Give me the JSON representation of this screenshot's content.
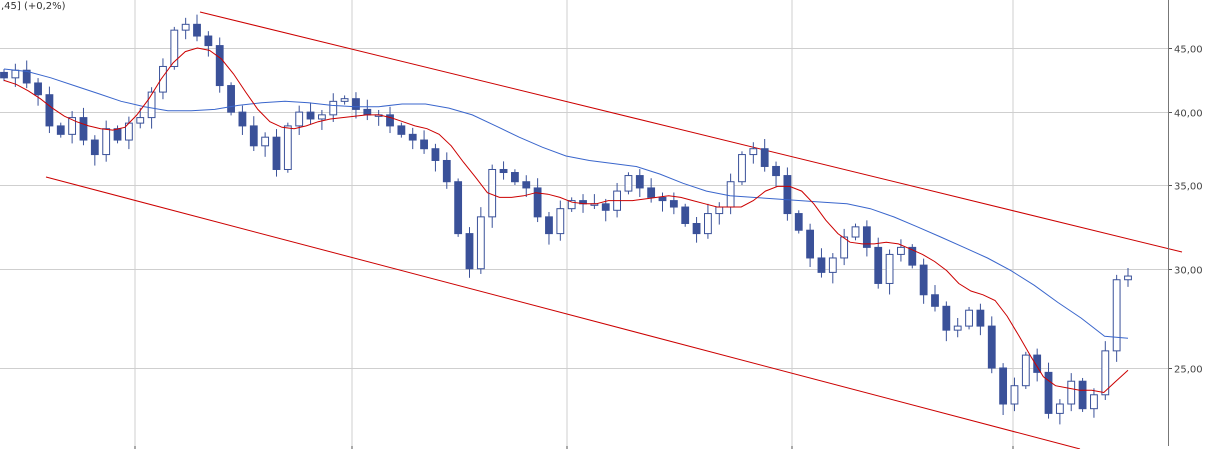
{
  "header": {
    "text": ",45] (+0,2%)"
  },
  "chart_data": {
    "type": "candlestick",
    "title": "",
    "xlabel": "",
    "ylabel": "",
    "y_scale": "log",
    "ylim": [
      22,
      48.5
    ],
    "y_ticks": [
      {
        "value": 25,
        "label": "25,00"
      },
      {
        "value": 30,
        "label": "30,00"
      },
      {
        "value": 35,
        "label": "35,00"
      },
      {
        "value": 40,
        "label": "40,00"
      },
      {
        "value": 45,
        "label": "45,00"
      }
    ],
    "grid": true,
    "legend": "none",
    "colors": {
      "candle": "#3a5199",
      "ma_short": "#cc0000",
      "ma_long": "#3a66cc",
      "channel": "#cc0000",
      "grid": "#cfcfcf"
    },
    "close_series": [
      42.6,
      43.2,
      42.2,
      41.3,
      39.0,
      38.4,
      39.6,
      38.0,
      37.0,
      38.8,
      38.0,
      39.2,
      39.6,
      41.5,
      43.5,
      46.5,
      47.0,
      46.0,
      45.2,
      42.0,
      40.0,
      39.0,
      37.6,
      38.2,
      36.0,
      39.0,
      40.0,
      39.5,
      39.8,
      40.8,
      41.0,
      40.2,
      39.8,
      39.8,
      39.0,
      38.4,
      38.0,
      37.4,
      36.6,
      35.2,
      32.0,
      30.0,
      33.0,
      36.0,
      35.8,
      35.2,
      34.8,
      33.0,
      32.0,
      33.5,
      34.0,
      33.8,
      33.8,
      33.4,
      34.6,
      35.6,
      34.8,
      34.2,
      34.0,
      33.6,
      32.6,
      32.0,
      33.2,
      33.6,
      35.2,
      37.0,
      37.4,
      36.2,
      35.6,
      33.2,
      32.2,
      30.6,
      29.8,
      30.6,
      31.8,
      32.4,
      31.2,
      29.2,
      30.8,
      31.2,
      30.2,
      28.6,
      28.0,
      26.8,
      27.0,
      27.8,
      27.0,
      25.0,
      23.4,
      24.2,
      25.6,
      24.8,
      23.0,
      23.4,
      24.4,
      23.2,
      23.8,
      25.8,
      29.4,
      29.6
    ],
    "ma_short": [
      42.4,
      42.1,
      41.6,
      41.0,
      40.3,
      39.7,
      39.3,
      39.0,
      38.8,
      38.7,
      38.9,
      39.8,
      41.0,
      42.5,
      43.8,
      44.7,
      45.0,
      44.8,
      44.1,
      42.9,
      41.5,
      40.2,
      39.3,
      38.9,
      38.8,
      39.0,
      39.3,
      39.5,
      39.6,
      39.7,
      39.8,
      39.8,
      39.6,
      39.3,
      39.0,
      38.8,
      38.4,
      37.6,
      36.5,
      35.5,
      34.5,
      34.2,
      34.2,
      34.3,
      34.5,
      34.4,
      34.2,
      33.9,
      33.8,
      33.8,
      34.0,
      34.0,
      34.0,
      34.1,
      34.2,
      34.3,
      34.2,
      34.0,
      33.8,
      33.6,
      33.6,
      33.6,
      34.0,
      34.6,
      34.9,
      34.9,
      34.6,
      33.8,
      32.8,
      32.0,
      31.5,
      31.4,
      31.4,
      31.5,
      31.4,
      31.1,
      30.8,
      30.4,
      29.9,
      29.2,
      28.8,
      28.6,
      28.3,
      27.5,
      26.5,
      25.5,
      24.6,
      24.2,
      24.1,
      24.0,
      24.0,
      23.9,
      24.4,
      24.9
    ],
    "ma_long": [
      43.3,
      43.1,
      42.6,
      42.0,
      41.4,
      40.8,
      40.4,
      40.1,
      40.1,
      40.2,
      40.5,
      40.7,
      40.8,
      40.7,
      40.5,
      40.4,
      40.4,
      40.6,
      40.6,
      40.3,
      39.8,
      39.0,
      38.2,
      37.5,
      36.9,
      36.6,
      36.4,
      36.2,
      35.7,
      35.1,
      34.6,
      34.3,
      34.2,
      34.1,
      34.0,
      33.9,
      33.8,
      33.5,
      33.0,
      32.4,
      31.8,
      31.2,
      30.6,
      29.9,
      29.1,
      28.2,
      27.4,
      26.5,
      26.4
    ]
  }
}
